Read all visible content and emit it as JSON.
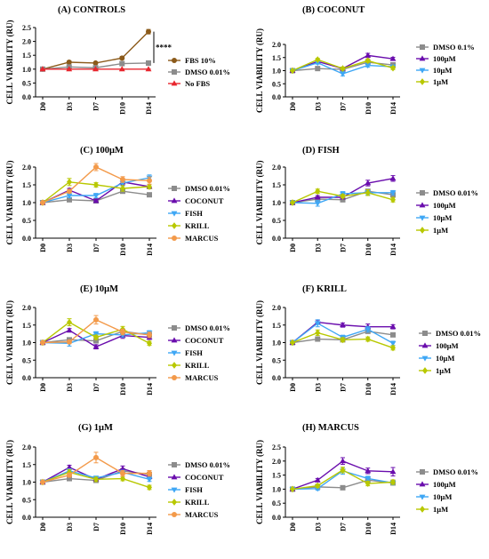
{
  "chart_data": [
    {
      "type": "line",
      "title": "(A)      CONTROLS",
      "ylabel": "CELL VIABILITY (RU)",
      "categories": [
        "D0",
        "D3",
        "D7",
        "D10",
        "D14"
      ],
      "ylim": [
        0,
        2.5
      ],
      "yticks": [
        "0.0",
        "0.5",
        "1.0",
        "1.5",
        "2.0",
        "2.5"
      ],
      "annotation": "****",
      "series": [
        {
          "name": "FBS 10%",
          "color": "#8B5A1A",
          "marker": "circle",
          "values": [
            1.0,
            1.25,
            1.22,
            1.4,
            2.35
          ],
          "errors": [
            0.02,
            0.05,
            0.04,
            0.05,
            0.08
          ]
        },
        {
          "name": "DMSO 0.01%",
          "color": "#8C8C8C",
          "marker": "square",
          "values": [
            1.0,
            1.08,
            1.05,
            1.2,
            1.22
          ],
          "errors": [
            0.02,
            0.04,
            0.03,
            0.05,
            0.08
          ]
        },
        {
          "name": "No FBS",
          "color": "#E8262E",
          "marker": "triangle",
          "values": [
            1.0,
            1.0,
            1.0,
            1.0,
            1.0
          ],
          "errors": [
            0.01,
            0.01,
            0.01,
            0.01,
            0.01
          ]
        }
      ]
    },
    {
      "type": "line",
      "title": "(B)      COCONUT",
      "ylabel": "CELL VIABILITY (RU)",
      "categories": [
        "D0",
        "D3",
        "D7",
        "D10",
        "D14"
      ],
      "ylim": [
        0,
        2.0
      ],
      "yticks": [
        "0.0",
        "0.5",
        "1.0",
        "1.5",
        "2.0"
      ],
      "series": [
        {
          "name": "DMSO 0.1%",
          "color": "#8C8C8C",
          "marker": "square",
          "values": [
            1.0,
            1.08,
            1.05,
            1.32,
            1.22
          ],
          "errors": [
            0.02,
            0.03,
            0.03,
            0.05,
            0.05
          ]
        },
        {
          "name": "100μM",
          "color": "#6A0DAD",
          "marker": "triangle",
          "values": [
            1.0,
            1.35,
            1.08,
            1.58,
            1.45
          ],
          "errors": [
            0.02,
            0.05,
            0.05,
            0.08,
            0.06
          ]
        },
        {
          "name": "10μM",
          "color": "#3FA7F5",
          "marker": "triangle-down",
          "values": [
            1.0,
            1.3,
            0.88,
            1.2,
            1.15
          ],
          "errors": [
            0.02,
            0.05,
            0.08,
            0.06,
            0.05
          ]
        },
        {
          "name": "1μM",
          "color": "#B8C800",
          "marker": "diamond",
          "values": [
            1.0,
            1.42,
            1.08,
            1.38,
            1.1
          ],
          "errors": [
            0.02,
            0.05,
            0.05,
            0.06,
            0.06
          ]
        }
      ]
    },
    {
      "type": "line",
      "title": "(C)      100μM",
      "ylabel": "CELL VIABILITY (RU)",
      "categories": [
        "D0",
        "D3",
        "D7",
        "D10",
        "D14"
      ],
      "ylim": [
        0,
        2.0
      ],
      "yticks": [
        "0.0",
        "0.5",
        "1.0",
        "1.5",
        "2.0"
      ],
      "series": [
        {
          "name": "DMSO 0.01%",
          "color": "#8C8C8C",
          "marker": "square",
          "values": [
            1.0,
            1.08,
            1.05,
            1.32,
            1.22
          ],
          "errors": [
            0.02,
            0.03,
            0.03,
            0.05,
            0.05
          ]
        },
        {
          "name": "COCONUT",
          "color": "#6A0DAD",
          "marker": "triangle",
          "values": [
            1.0,
            1.35,
            1.05,
            1.58,
            1.45
          ],
          "errors": [
            0.02,
            0.05,
            0.05,
            0.08,
            0.06
          ]
        },
        {
          "name": "FISH",
          "color": "#3FA7F5",
          "marker": "triangle-down",
          "values": [
            1.0,
            1.2,
            1.2,
            1.55,
            1.7
          ],
          "errors": [
            0.02,
            0.06,
            0.06,
            0.08,
            0.08
          ]
        },
        {
          "name": "KRILL",
          "color": "#B8C800",
          "marker": "diamond",
          "values": [
            1.0,
            1.58,
            1.5,
            1.4,
            1.45
          ],
          "errors": [
            0.02,
            0.1,
            0.06,
            0.08,
            0.06
          ]
        },
        {
          "name": "MARCUS",
          "color": "#F39A4A",
          "marker": "circle",
          "values": [
            1.0,
            1.32,
            2.0,
            1.65,
            1.62
          ],
          "errors": [
            0.02,
            0.05,
            0.1,
            0.08,
            0.1
          ]
        }
      ]
    },
    {
      "type": "line",
      "title": "(D)      FISH",
      "ylabel": "CELL VIABILITY (RU)",
      "categories": [
        "D0",
        "D3",
        "D7",
        "D10",
        "D14"
      ],
      "ylim": [
        0,
        2.0
      ],
      "yticks": [
        "0.0",
        "0.5",
        "1.0",
        "1.5",
        "2.0"
      ],
      "series": [
        {
          "name": "DMSO 0.01%",
          "color": "#8C8C8C",
          "marker": "square",
          "values": [
            1.0,
            1.1,
            1.08,
            1.32,
            1.22
          ],
          "errors": [
            0.02,
            0.03,
            0.03,
            0.05,
            0.05
          ]
        },
        {
          "name": "100μM",
          "color": "#6A0DAD",
          "marker": "triangle",
          "values": [
            1.0,
            1.15,
            1.15,
            1.55,
            1.68
          ],
          "errors": [
            0.02,
            0.05,
            0.05,
            0.08,
            0.08
          ]
        },
        {
          "name": "10μM",
          "color": "#3FA7F5",
          "marker": "triangle-down",
          "values": [
            1.0,
            0.98,
            1.25,
            1.28,
            1.28
          ],
          "errors": [
            0.02,
            0.08,
            0.06,
            0.06,
            0.06
          ]
        },
        {
          "name": "1μM",
          "color": "#B8C800",
          "marker": "diamond",
          "values": [
            1.0,
            1.32,
            1.18,
            1.28,
            1.08
          ],
          "errors": [
            0.02,
            0.06,
            0.05,
            0.08,
            0.06
          ]
        }
      ]
    },
    {
      "type": "line",
      "title": "(E)      10μM",
      "ylabel": "CELL VIABILITY (RU)",
      "categories": [
        "D0",
        "D3",
        "D7",
        "D10",
        "D14"
      ],
      "ylim": [
        0,
        2.0
      ],
      "yticks": [
        "0.0",
        "0.5",
        "1.0",
        "1.5",
        "2.0"
      ],
      "series": [
        {
          "name": "DMSO 0.01%",
          "color": "#8C8C8C",
          "marker": "square",
          "values": [
            1.0,
            1.08,
            1.05,
            1.32,
            1.22
          ],
          "errors": [
            0.02,
            0.03,
            0.03,
            0.05,
            0.05
          ]
        },
        {
          "name": "COCONUT",
          "color": "#6A0DAD",
          "marker": "triangle",
          "values": [
            1.0,
            1.35,
            0.88,
            1.2,
            1.15
          ],
          "errors": [
            0.02,
            0.05,
            0.06,
            0.08,
            0.06
          ]
        },
        {
          "name": "FISH",
          "color": "#3FA7F5",
          "marker": "triangle-down",
          "values": [
            1.0,
            0.98,
            1.25,
            1.22,
            1.28
          ],
          "errors": [
            0.02,
            0.08,
            0.06,
            0.06,
            0.06
          ]
        },
        {
          "name": "KRILL",
          "color": "#B8C800",
          "marker": "diamond",
          "values": [
            1.0,
            1.58,
            1.15,
            1.38,
            0.98
          ],
          "errors": [
            0.02,
            0.1,
            0.06,
            0.08,
            0.06
          ]
        },
        {
          "name": "MARCUS",
          "color": "#F39A4A",
          "marker": "circle",
          "values": [
            1.0,
            1.02,
            1.65,
            1.3,
            1.22
          ],
          "errors": [
            0.02,
            0.05,
            0.12,
            0.08,
            0.08
          ]
        }
      ]
    },
    {
      "type": "line",
      "title": "(F)      KRILL",
      "ylabel": "CELL VIABILITY (RU)",
      "categories": [
        "D0",
        "D3",
        "D7",
        "D10",
        "D14"
      ],
      "ylim": [
        0,
        2.0
      ],
      "yticks": [
        "0.0",
        "0.5",
        "1.0",
        "1.5",
        "2.0"
      ],
      "series": [
        {
          "name": "DMSO 0.01%",
          "color": "#8C8C8C",
          "marker": "square",
          "values": [
            1.0,
            1.1,
            1.08,
            1.32,
            1.22
          ],
          "errors": [
            0.02,
            0.03,
            0.03,
            0.05,
            0.05
          ]
        },
        {
          "name": "100μM",
          "color": "#6A0DAD",
          "marker": "triangle",
          "values": [
            1.0,
            1.58,
            1.5,
            1.45,
            1.45
          ],
          "errors": [
            0.02,
            0.06,
            0.06,
            0.08,
            0.06
          ]
        },
        {
          "name": "10μM",
          "color": "#3FA7F5",
          "marker": "triangle-down",
          "values": [
            1.0,
            1.55,
            1.15,
            1.38,
            0.98
          ],
          "errors": [
            0.02,
            0.1,
            0.06,
            0.08,
            0.06
          ]
        },
        {
          "name": "1μM",
          "color": "#B8C800",
          "marker": "diamond",
          "values": [
            1.0,
            1.28,
            1.08,
            1.1,
            0.85
          ],
          "errors": [
            0.02,
            0.08,
            0.06,
            0.06,
            0.06
          ]
        }
      ]
    },
    {
      "type": "line",
      "title": "(G)      1μM",
      "ylabel": "CELL VIABILITY (RU)",
      "categories": [
        "D0",
        "D3",
        "D7",
        "D10",
        "D14"
      ],
      "ylim": [
        0,
        2.0
      ],
      "yticks": [
        "0.0",
        "0.5",
        "1.0",
        "1.5",
        "2.0"
      ],
      "series": [
        {
          "name": "DMSO 0.01%",
          "color": "#8C8C8C",
          "marker": "square",
          "values": [
            1.0,
            1.1,
            1.05,
            1.32,
            1.22
          ],
          "errors": [
            0.02,
            0.03,
            0.03,
            0.05,
            0.05
          ]
        },
        {
          "name": "COCONUT",
          "color": "#6A0DAD",
          "marker": "triangle",
          "values": [
            1.0,
            1.42,
            1.08,
            1.38,
            1.15
          ],
          "errors": [
            0.02,
            0.06,
            0.05,
            0.08,
            0.06
          ]
        },
        {
          "name": "FISH",
          "color": "#3FA7F5",
          "marker": "triangle-down",
          "values": [
            1.0,
            1.32,
            1.12,
            1.28,
            1.08
          ],
          "errors": [
            0.02,
            0.06,
            0.05,
            0.06,
            0.06
          ]
        },
        {
          "name": "KRILL",
          "color": "#B8C800",
          "marker": "diamond",
          "values": [
            1.0,
            1.28,
            1.08,
            1.1,
            0.85
          ],
          "errors": [
            0.02,
            0.08,
            0.06,
            0.06,
            0.06
          ]
        },
        {
          "name": "MARCUS",
          "color": "#F39A4A",
          "marker": "circle",
          "values": [
            1.0,
            1.2,
            1.7,
            1.25,
            1.25
          ],
          "errors": [
            0.02,
            0.06,
            0.15,
            0.08,
            0.08
          ]
        }
      ]
    },
    {
      "type": "line",
      "title": "(H)      MARCUS",
      "ylabel": "CELL VIABILITY (RU)",
      "categories": [
        "D0",
        "D3",
        "D7",
        "D10",
        "D14"
      ],
      "ylim": [
        0,
        2.5
      ],
      "yticks": [
        "0.0",
        "0.5",
        "1.0",
        "1.5",
        "2.0",
        "2.5"
      ],
      "series": [
        {
          "name": "DMSO 0.01%",
          "color": "#8C8C8C",
          "marker": "square",
          "values": [
            1.0,
            1.08,
            1.05,
            1.32,
            1.22
          ],
          "errors": [
            0.02,
            0.03,
            0.03,
            0.05,
            0.05
          ]
        },
        {
          "name": "100μM",
          "color": "#6A0DAD",
          "marker": "triangle",
          "values": [
            1.0,
            1.32,
            2.0,
            1.65,
            1.62
          ],
          "errors": [
            0.02,
            0.06,
            0.12,
            0.1,
            0.15
          ]
        },
        {
          "name": "10μM",
          "color": "#3FA7F5",
          "marker": "triangle-down",
          "values": [
            1.0,
            1.02,
            1.65,
            1.38,
            1.22
          ],
          "errors": [
            0.02,
            0.06,
            0.12,
            0.08,
            0.06
          ]
        },
        {
          "name": "1μM",
          "color": "#B8C800",
          "marker": "diamond",
          "values": [
            1.0,
            1.12,
            1.68,
            1.2,
            1.25
          ],
          "errors": [
            0.02,
            0.06,
            0.1,
            0.08,
            0.08
          ]
        }
      ]
    }
  ]
}
